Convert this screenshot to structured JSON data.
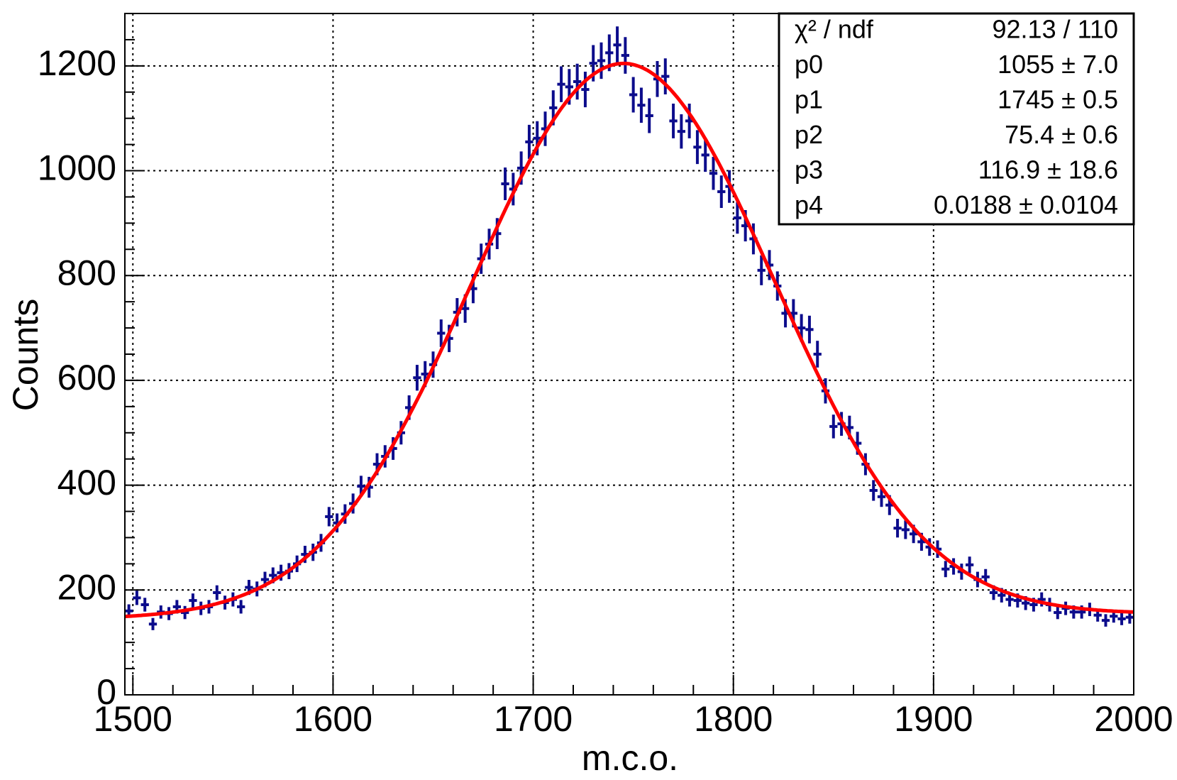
{
  "chart_data": {
    "type": "errorbar",
    "xlabel": "m.c.o.",
    "ylabel": "Counts",
    "color": "#0c0c8c",
    "x": [
      1498,
      1502,
      1506,
      1510,
      1514,
      1518,
      1522,
      1526,
      1530,
      1534,
      1538,
      1542,
      1546,
      1550,
      1554,
      1558,
      1562,
      1566,
      1570,
      1574,
      1578,
      1582,
      1586,
      1590,
      1594,
      1598,
      1602,
      1606,
      1610,
      1614,
      1618,
      1622,
      1626,
      1630,
      1634,
      1638,
      1642,
      1646,
      1650,
      1654,
      1658,
      1662,
      1666,
      1670,
      1674,
      1678,
      1682,
      1686,
      1690,
      1694,
      1698,
      1702,
      1706,
      1710,
      1714,
      1718,
      1722,
      1726,
      1730,
      1734,
      1738,
      1742,
      1746,
      1750,
      1754,
      1758,
      1762,
      1766,
      1770,
      1774,
      1778,
      1782,
      1786,
      1790,
      1794,
      1798,
      1802,
      1806,
      1810,
      1814,
      1818,
      1822,
      1826,
      1830,
      1834,
      1838,
      1842,
      1846,
      1850,
      1854,
      1858,
      1862,
      1866,
      1870,
      1874,
      1878,
      1882,
      1886,
      1890,
      1894,
      1898,
      1902,
      1906,
      1910,
      1914,
      1918,
      1922,
      1926,
      1930,
      1934,
      1938,
      1942,
      1946,
      1950,
      1954,
      1958,
      1962,
      1966,
      1970,
      1974,
      1978,
      1982,
      1986,
      1990,
      1994,
      1998
    ],
    "values": [
      160,
      185,
      172,
      135,
      158,
      155,
      168,
      157,
      180,
      165,
      168,
      195,
      176,
      182,
      168,
      205,
      202,
      220,
      228,
      233,
      236,
      250,
      268,
      272,
      290,
      340,
      328,
      345,
      365,
      398,
      396,
      440,
      455,
      470,
      500,
      548,
      605,
      612,
      630,
      690,
      680,
      730,
      737,
      775,
      832,
      860,
      880,
      975,
      965,
      1005,
      1055,
      1062,
      1080,
      1120,
      1165,
      1160,
      1170,
      1155,
      1205,
      1210,
      1225,
      1240,
      1220,
      1145,
      1125,
      1105,
      1175,
      1180,
      1095,
      1075,
      1095,
      1045,
      1030,
      995,
      960,
      970,
      910,
      895,
      870,
      810,
      820,
      780,
      728,
      728,
      700,
      697,
      650,
      580,
      512,
      517,
      510,
      480,
      440,
      390,
      378,
      362,
      318,
      315,
      307,
      292,
      282,
      278,
      240,
      245,
      235,
      248,
      220,
      225,
      195,
      190,
      182,
      180,
      175,
      172,
      182,
      172,
      157,
      165,
      158,
      158,
      163,
      152,
      142,
      150,
      145,
      148
    ],
    "xlim": [
      1496,
      2000
    ],
    "ylim": [
      0,
      1300
    ],
    "xticks": [
      1500,
      1600,
      1700,
      1800,
      1900,
      2000
    ],
    "yticks": [
      0,
      200,
      400,
      600,
      800,
      1000,
      1200
    ],
    "grid": true,
    "fit": {
      "color": "#ff0000",
      "params": [
        {
          "name": "p0",
          "value": 1055,
          "error": 7.0,
          "label": "1055 ± 7.0"
        },
        {
          "name": "p1",
          "value": 1745,
          "error": 0.5,
          "label": "1745 ± 0.5"
        },
        {
          "name": "p2",
          "value": 75.4,
          "error": 0.6,
          "label": "75.4 ± 0.6"
        },
        {
          "name": "p3",
          "value": 116.9,
          "error": 18.6,
          "label": "116.9 ± 18.6"
        },
        {
          "name": "p4",
          "value": 0.0188,
          "error": 0.0104,
          "label": "0.0188 ± 0.0104"
        }
      ]
    },
    "stats": {
      "name": "χ² / ndf",
      "value": "92.13 / 110"
    }
  }
}
